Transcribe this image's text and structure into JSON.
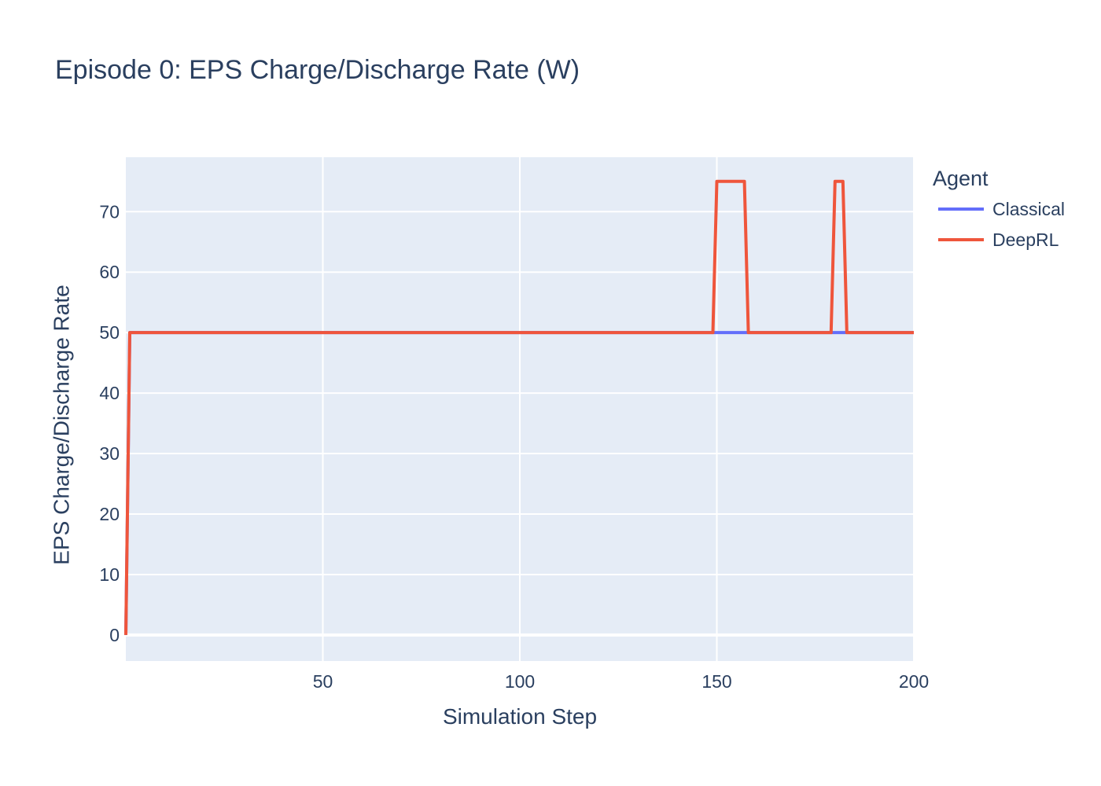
{
  "chart_data": {
    "type": "line",
    "title": "Episode 0: EPS Charge/Discharge Rate (W)",
    "xlabel": "Simulation Step",
    "ylabel": "EPS Charge/Discharge Rate",
    "xlim": [
      0,
      200
    ],
    "ylim": [
      -4.3,
      79
    ],
    "xticks": [
      50,
      100,
      150,
      200
    ],
    "yticks": [
      0,
      10,
      20,
      30,
      40,
      50,
      60,
      70
    ],
    "grid": true,
    "legend_title": "Agent",
    "legend_position": "top-right outside",
    "colors": {
      "plot_background": "#e5ecf6",
      "grid": "#ffffff",
      "text": "#2a3f5f"
    },
    "series": [
      {
        "name": "Classical",
        "color": "#636efa",
        "x": [
          0,
          1,
          200
        ],
        "y": [
          0,
          50,
          50
        ]
      },
      {
        "name": "DeepRL",
        "color": "#ef553b",
        "x": [
          0,
          1,
          149,
          150,
          157,
          158,
          179,
          180,
          182,
          183,
          200
        ],
        "y": [
          0,
          50,
          50,
          75,
          75,
          50,
          50,
          75,
          75,
          50,
          50
        ]
      }
    ]
  }
}
